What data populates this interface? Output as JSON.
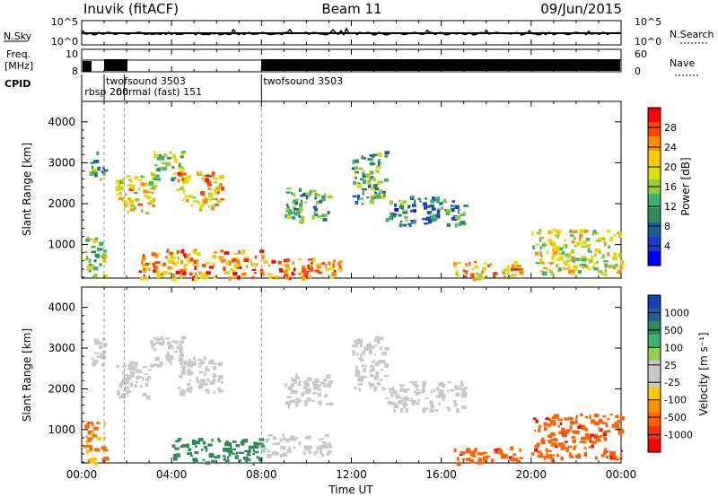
{
  "header": {
    "station": "Inuvik (fitACF)",
    "beam": "Beam 11",
    "date": "09/Jun/2015"
  },
  "side_labels": {
    "nsky": "N.Sky",
    "freq_line1": "Freq.",
    "freq_line2": "[MHz]",
    "cpid": "CPID",
    "nsearch": "N.Search",
    "nave": "Nave"
  },
  "top_panel_ticks": {
    "nsky_top": "10^5",
    "nsky_bot": "10^0",
    "nsearch_top": "10^5",
    "nsearch_bot": "10^0",
    "freq_top": "10",
    "freq_bot": "8",
    "nave_top": "60",
    "nave_bot": "0"
  },
  "cpid_labels": [
    {
      "text": "twofsound 3503",
      "t": 1.0,
      "row": 0
    },
    {
      "text": "rbsp 200",
      "t": 0.05,
      "row": 1
    },
    {
      "text": "normal (fast) 151",
      "t": 1.45,
      "row": 1
    },
    {
      "text": "twofsound 3503",
      "t": 8.0,
      "row": 0
    }
  ],
  "cpid_boundaries": [
    0.0,
    1.0,
    1.9,
    8.0
  ],
  "time_axis": {
    "label": "Time UT",
    "ticks": [
      "00:00",
      "04:00",
      "08:00",
      "12:00",
      "16:00",
      "20:00",
      "00:00"
    ],
    "range_hours": [
      0,
      24
    ]
  },
  "range_axis": {
    "label": "Slant Range [km]",
    "ticks": [
      "1000",
      "2000",
      "3000",
      "4000"
    ],
    "range_km": [
      180,
      4500
    ]
  },
  "colorbars": {
    "power": {
      "label": "Power [dB]",
      "ticks": [
        "28",
        "24",
        "20",
        "16",
        "12",
        "8",
        "4"
      ],
      "colors": [
        "#ff0000",
        "#ff4500",
        "#ff8c00",
        "#ffc800",
        "#dddd00",
        "#9acd32",
        "#3cb371",
        "#2e8b57",
        "#1a6090",
        "#1e3cc8",
        "#0000ff"
      ]
    },
    "velocity": {
      "label": "Velocity [m s⁻¹]",
      "ticks": [
        "1000",
        "500",
        "100",
        "25",
        "-25",
        "-100",
        "-500",
        "-1000"
      ],
      "colors": [
        "#1a3fb0",
        "#2060a0",
        "#2e8b57",
        "#3cb371",
        "#90d050",
        "#c8c8c8",
        "#c8c8c8",
        "#ffc800",
        "#ff9000",
        "#ff6000",
        "#ff3000",
        "#ff0000"
      ]
    }
  },
  "chart_data": [
    {
      "type": "heatmap",
      "title": "Power",
      "xlabel": "Time UT",
      "ylabel": "Slant Range [km]",
      "xlim": [
        0,
        24
      ],
      "ylim": [
        180,
        4500
      ],
      "colorbar": "Power [dB]",
      "features": [
        {
          "t": [
            0.1,
            1.0
          ],
          "r": [
            200,
            1200
          ],
          "dB": 16
        },
        {
          "t": [
            0.3,
            1.0
          ],
          "r": [
            2600,
            3300
          ],
          "dB": 14
        },
        {
          "t": [
            1.5,
            3.2
          ],
          "r": [
            1800,
            2700
          ],
          "dB": 22
        },
        {
          "t": [
            3.0,
            4.5
          ],
          "r": [
            2600,
            3300
          ],
          "dB": 16
        },
        {
          "t": [
            4.2,
            6.2
          ],
          "r": [
            1900,
            2800
          ],
          "dB": 24
        },
        {
          "t": [
            2.5,
            8.0
          ],
          "r": [
            200,
            900
          ],
          "dB": 26
        },
        {
          "t": [
            8.0,
            11.5
          ],
          "r": [
            200,
            700
          ],
          "dB": 26
        },
        {
          "t": [
            9.0,
            11.0
          ],
          "r": [
            1600,
            2400
          ],
          "dB": 12
        },
        {
          "t": [
            12.0,
            13.5
          ],
          "r": [
            2000,
            3300
          ],
          "dB": 14
        },
        {
          "t": [
            13.5,
            17.0
          ],
          "r": [
            1500,
            2200
          ],
          "dB": 10
        },
        {
          "t": [
            16.5,
            19.5
          ],
          "r": [
            200,
            600
          ],
          "dB": 24
        },
        {
          "t": [
            20.0,
            24.0
          ],
          "r": [
            300,
            1400
          ],
          "dB": 20
        }
      ]
    },
    {
      "type": "heatmap",
      "title": "Velocity",
      "xlabel": "Time UT",
      "ylabel": "Slant Range [km]",
      "xlim": [
        0,
        24
      ],
      "ylim": [
        180,
        4500
      ],
      "colorbar": "Velocity [m s⁻¹]",
      "features": [
        {
          "t": [
            0.1,
            1.0
          ],
          "r": [
            200,
            1200
          ],
          "v": -100
        },
        {
          "t": [
            0.3,
            1.0
          ],
          "r": [
            2600,
            3300
          ],
          "v": 0
        },
        {
          "t": [
            1.5,
            3.2
          ],
          "r": [
            1800,
            2700
          ],
          "v": 0
        },
        {
          "t": [
            3.0,
            4.5
          ],
          "r": [
            2600,
            3300
          ],
          "v": 0
        },
        {
          "t": [
            4.2,
            6.2
          ],
          "r": [
            1900,
            2800
          ],
          "v": 0
        },
        {
          "t": [
            4.0,
            8.0
          ],
          "r": [
            200,
            800
          ],
          "v": 200
        },
        {
          "t": [
            8.0,
            11.0
          ],
          "r": [
            400,
            900
          ],
          "v": 0
        },
        {
          "t": [
            9.0,
            11.0
          ],
          "r": [
            1600,
            2400
          ],
          "v": 0
        },
        {
          "t": [
            12.0,
            13.5
          ],
          "r": [
            2000,
            3300
          ],
          "v": 0
        },
        {
          "t": [
            13.5,
            17.0
          ],
          "r": [
            1500,
            2200
          ],
          "v": 0
        },
        {
          "t": [
            16.5,
            19.5
          ],
          "r": [
            200,
            600
          ],
          "v": -300
        },
        {
          "t": [
            20.0,
            24.0
          ],
          "r": [
            300,
            1400
          ],
          "v": -300
        }
      ]
    }
  ]
}
